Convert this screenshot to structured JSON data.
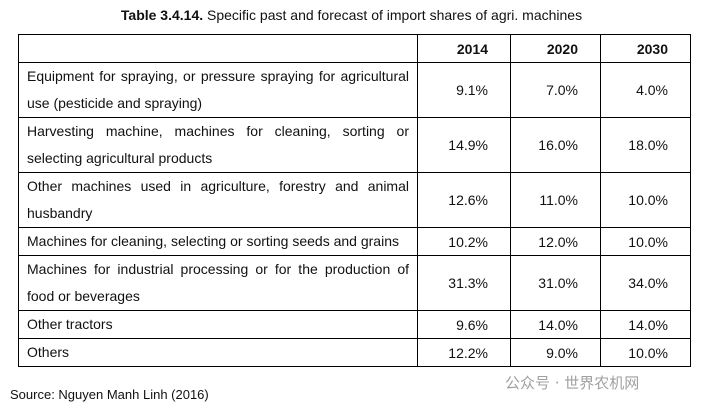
{
  "caption": {
    "label": "Table 3.4.14.",
    "text": "Specific past and forecast of import shares of agri. machines"
  },
  "table": {
    "header": [
      "",
      "2014",
      "2020",
      "2030"
    ],
    "rows": [
      [
        "Equipment for spraying, or pressure spraying for agricultural use (pesticide and spraying)",
        "9.1%",
        "7.0%",
        "4.0%"
      ],
      [
        "Harvesting machine, machines for cleaning, sorting or selecting agricultural products",
        "14.9%",
        "16.0%",
        "18.0%"
      ],
      [
        "Other machines used in agriculture, forestry and animal husbandry",
        "12.6%",
        "11.0%",
        "10.0%"
      ],
      [
        "Machines for cleaning, selecting or sorting seeds and grains",
        "10.2%",
        "12.0%",
        "10.0%"
      ],
      [
        "Machines for industrial processing or for the production of food or beverages",
        "31.3%",
        "31.0%",
        "34.0%"
      ],
      [
        "Other tractors",
        "9.6%",
        "14.0%",
        "14.0%"
      ],
      [
        "Others",
        "12.2%",
        "9.0%",
        "10.0%"
      ]
    ]
  },
  "source": "Source: Nguyen Manh Linh (2016)",
  "watermark": "公众号 · 世界农机网"
}
